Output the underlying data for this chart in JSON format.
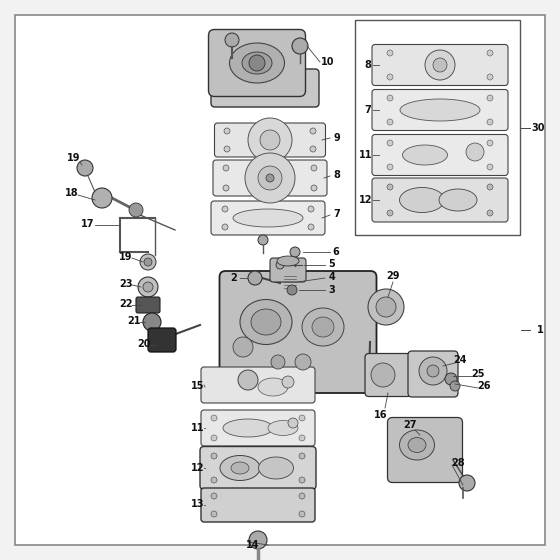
{
  "bg": "#f2f2f2",
  "white": "#ffffff",
  "gray1": "#cccccc",
  "gray2": "#b8b8b8",
  "gray3": "#d8d8d8",
  "gray4": "#e8e8e8",
  "dark": "#222222",
  "med": "#555555",
  "lc": "#333333",
  "bc": "#888888"
}
